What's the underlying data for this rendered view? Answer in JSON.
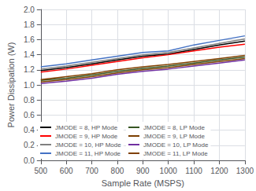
{
  "chart_data": {
    "type": "line",
    "x": [
      500,
      600,
      700,
      800,
      900,
      1000,
      1100,
      1200,
      1300
    ],
    "series": [
      {
        "name": "JMODE = 8, HP Mode",
        "color": "#000000",
        "values": [
          1.19,
          1.23,
          1.28,
          1.33,
          1.38,
          1.41,
          1.47,
          1.53,
          1.58
        ]
      },
      {
        "name": "JMODE = 9, HP Mode",
        "color": "#ff0000",
        "values": [
          1.17,
          1.21,
          1.26,
          1.31,
          1.36,
          1.4,
          1.45,
          1.5,
          1.54
        ]
      },
      {
        "name": "JMODE = 10, HP Mode",
        "color": "#808080",
        "values": [
          1.21,
          1.25,
          1.3,
          1.35,
          1.4,
          1.43,
          1.49,
          1.55,
          1.61
        ]
      },
      {
        "name": "JMODE = 11, HP Mode",
        "color": "#4472c4",
        "values": [
          1.24,
          1.28,
          1.33,
          1.38,
          1.43,
          1.45,
          1.53,
          1.59,
          1.65
        ]
      },
      {
        "name": "JMODE = 8, LP Mode",
        "color": "#375623",
        "values": [
          1.06,
          1.09,
          1.13,
          1.18,
          1.22,
          1.25,
          1.29,
          1.33,
          1.37
        ]
      },
      {
        "name": "JMODE = 9, LP Mode",
        "color": "#7B3F00",
        "values": [
          1.04,
          1.07,
          1.11,
          1.16,
          1.2,
          1.23,
          1.27,
          1.31,
          1.35
        ]
      },
      {
        "name": "JMODE = 10, LP Mode",
        "color": "#7030a0",
        "values": [
          1.02,
          1.05,
          1.09,
          1.14,
          1.18,
          1.21,
          1.25,
          1.29,
          1.33
        ]
      },
      {
        "name": "JMODE = 11, LP Mode",
        "color": "#804000",
        "values": [
          1.07,
          1.11,
          1.15,
          1.2,
          1.24,
          1.27,
          1.31,
          1.35,
          1.39
        ]
      }
    ],
    "xlabel": "Sample Rate (MSPS)",
    "ylabel": "Power Dissipation (W)",
    "xlim": [
      500,
      1300
    ],
    "ylim": [
      0,
      2
    ],
    "xticks": [
      500,
      600,
      700,
      800,
      900,
      1000,
      1100,
      1200,
      1300
    ],
    "yticks": [
      {
        "value": 0,
        "label": "0.0"
      },
      0.2,
      0.4,
      0.6,
      0.8,
      {
        "value": 1.0,
        "label": "1.0"
      },
      1.2,
      1.4,
      1.6,
      1.8,
      {
        "value": 2.0,
        "label": "2.0"
      }
    ],
    "grid": true,
    "legend": "lower left"
  }
}
